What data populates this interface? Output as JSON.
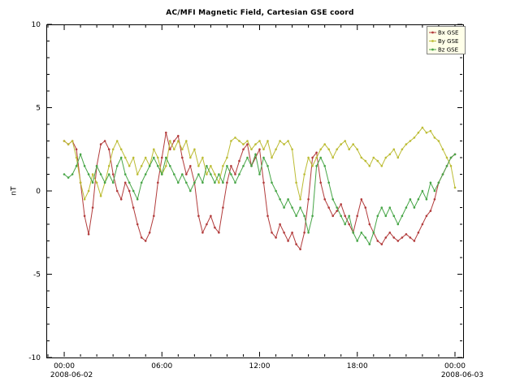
{
  "window": {
    "bg": "#ffffff"
  },
  "chart_data": {
    "type": "line",
    "title": "AC/MFI  Magnetic Field, Cartesian GSE coord",
    "xlabel": "",
    "ylabel": "nT",
    "ylim": [
      -10,
      10
    ],
    "yticks": [
      -10,
      -5,
      0,
      5,
      10
    ],
    "xlim_hours": [
      -1.1,
      24.5
    ],
    "x_step_hours": 0.25,
    "xticks": [
      {
        "hour": 0,
        "label": "00:00",
        "date": "2008-06-02"
      },
      {
        "hour": 6,
        "label": "06:00"
      },
      {
        "hour": 12,
        "label": "12:00"
      },
      {
        "hour": 18,
        "label": "18:00"
      },
      {
        "hour": 24,
        "label": "00:00",
        "date": "2008-06-03"
      }
    ],
    "grid": false,
    "legend": {
      "position": "top-right",
      "bg": "#ffffe9",
      "border": "#666666"
    },
    "series": [
      {
        "name": "Bx GSE",
        "color": "#b23b3b",
        "values": [
          3.0,
          2.8,
          3.0,
          2.5,
          0.5,
          -1.5,
          -2.6,
          -1.0,
          1.5,
          2.8,
          3.0,
          2.5,
          1.0,
          0.0,
          -0.5,
          0.5,
          0.0,
          -1.0,
          -2.0,
          -2.8,
          -3.0,
          -2.5,
          -1.5,
          0.5,
          2.0,
          3.5,
          2.5,
          3.0,
          3.3,
          2.0,
          1.0,
          1.5,
          0.5,
          -1.5,
          -2.5,
          -2.0,
          -1.5,
          -2.2,
          -2.5,
          -1.0,
          0.5,
          1.5,
          1.0,
          1.8,
          2.5,
          2.8,
          1.5,
          2.0,
          2.5,
          0.5,
          -1.5,
          -2.5,
          -2.8,
          -2.0,
          -2.5,
          -3.0,
          -2.5,
          -3.2,
          -3.5,
          -2.5,
          -0.5,
          2.0,
          2.3,
          0.5,
          -0.5,
          -1.0,
          -1.5,
          -1.2,
          -0.8,
          -1.5,
          -2.0,
          -2.5,
          -1.5,
          -0.5,
          -1.0,
          -2.0,
          -2.5,
          -3.0,
          -3.2,
          -2.8,
          -2.5,
          -2.8,
          -3.0,
          -2.8,
          -2.6,
          -2.8,
          -3.0,
          -2.5,
          -2.0,
          -1.5,
          -1.2,
          -0.5,
          0.5,
          1.0,
          1.5,
          2.0,
          2.2
        ]
      },
      {
        "name": "By GSE",
        "color": "#bcbc34",
        "values": [
          3.0,
          2.8,
          3.0,
          2.0,
          0.5,
          -0.5,
          0.0,
          1.0,
          0.5,
          -0.3,
          0.5,
          1.5,
          2.5,
          3.0,
          2.5,
          2.0,
          1.5,
          2.0,
          1.0,
          1.5,
          2.0,
          1.5,
          2.5,
          2.0,
          1.0,
          1.5,
          3.0,
          2.5,
          3.0,
          2.5,
          3.0,
          2.0,
          2.5,
          1.5,
          2.0,
          1.0,
          1.5,
          1.0,
          0.5,
          1.5,
          2.0,
          3.0,
          3.2,
          3.0,
          2.8,
          3.0,
          2.5,
          2.8,
          3.0,
          2.5,
          3.0,
          2.0,
          2.5,
          3.0,
          2.8,
          3.0,
          2.5,
          0.5,
          -0.5,
          1.0,
          2.0,
          1.5,
          2.0,
          2.5,
          2.8,
          2.5,
          2.0,
          2.5,
          2.8,
          3.0,
          2.5,
          2.8,
          2.5,
          2.0,
          1.8,
          1.5,
          2.0,
          1.8,
          1.5,
          2.0,
          2.2,
          2.5,
          2.0,
          2.5,
          2.8,
          3.0,
          3.2,
          3.5,
          3.8,
          3.5,
          3.6,
          3.2,
          3.0,
          2.5,
          2.0,
          1.5,
          0.2
        ]
      },
      {
        "name": "Bz GSE",
        "color": "#46a546",
        "values": [
          1.0,
          0.8,
          1.0,
          1.5,
          2.2,
          1.5,
          1.0,
          0.5,
          1.5,
          1.0,
          0.5,
          1.0,
          0.5,
          1.5,
          2.0,
          1.0,
          0.5,
          0.0,
          -0.5,
          0.5,
          1.0,
          1.5,
          2.0,
          1.5,
          1.0,
          2.0,
          1.5,
          1.0,
          0.5,
          1.0,
          0.5,
          0.0,
          0.5,
          1.0,
          0.5,
          1.5,
          1.0,
          0.5,
          1.0,
          0.5,
          1.5,
          1.0,
          0.5,
          1.0,
          1.5,
          2.0,
          1.5,
          2.2,
          1.0,
          2.0,
          1.5,
          0.5,
          0.0,
          -0.5,
          -1.0,
          -0.5,
          -1.0,
          -1.5,
          -1.0,
          -1.5,
          -2.5,
          -1.5,
          1.5,
          2.0,
          1.5,
          0.5,
          -0.5,
          -1.0,
          -1.5,
          -2.0,
          -1.5,
          -2.5,
          -3.0,
          -2.5,
          -2.8,
          -3.2,
          -2.5,
          -1.5,
          -1.0,
          -1.5,
          -1.0,
          -1.5,
          -2.0,
          -1.5,
          -1.0,
          -0.5,
          -1.0,
          -0.5,
          0.0,
          -0.5,
          0.5,
          0.0,
          0.5,
          1.0,
          1.5,
          2.0,
          2.2
        ]
      }
    ]
  }
}
